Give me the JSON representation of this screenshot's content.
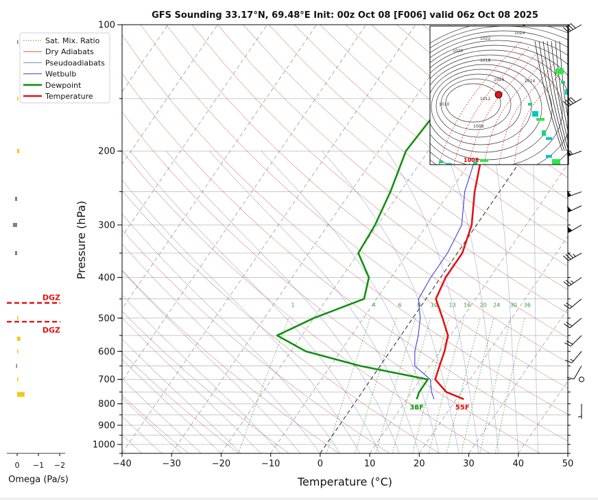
{
  "chart_data": {
    "type": "line",
    "title": "GFS Sounding 33.17°N, 69.48°E Init: 00z Oct 08 [F006] valid 06z Oct 08 2025",
    "xlabel": "Temperature (°C)",
    "ylabel": "Pressure (hPa)",
    "xlim": [
      -40,
      50
    ],
    "ylim_hpa": [
      1050,
      100
    ],
    "y_scale": "log",
    "skew": true,
    "x_ticks": [
      -40,
      -30,
      -20,
      -10,
      0,
      10,
      20,
      30,
      40,
      50
    ],
    "y_ticks": [
      100,
      200,
      300,
      400,
      500,
      600,
      700,
      800,
      900,
      1000
    ],
    "grid": true,
    "legend_position": "top-left",
    "legend": [
      {
        "label": "Sat. Mix. Ratio",
        "color": "#2ca02c",
        "style": "dotted"
      },
      {
        "label": "Dry Adiabats",
        "color": "#c85a5a",
        "style": "solid"
      },
      {
        "label": "Pseudoadiabats",
        "color": "#8080c0",
        "style": "solid"
      },
      {
        "label": "Wetbulb",
        "color": "#3b3bd8",
        "style": "solid"
      },
      {
        "label": "Dewpoint",
        "color": "#109010",
        "style": "solid"
      },
      {
        "label": "Temperature",
        "color": "#e01414",
        "style": "solid"
      }
    ],
    "series": [
      {
        "name": "Temperature",
        "color": "#e01414",
        "points": [
          [
            780,
            21.5
          ],
          [
            750,
            17
          ],
          [
            700,
            13
          ],
          [
            650,
            12
          ],
          [
            600,
            11
          ],
          [
            550,
            9.5
          ],
          [
            500,
            6
          ],
          [
            450,
            2
          ],
          [
            400,
            1
          ],
          [
            350,
            1
          ],
          [
            300,
            -1
          ],
          [
            250,
            -5
          ],
          [
            200,
            -9
          ],
          [
            150,
            -14
          ],
          [
            100,
            -6
          ]
        ]
      },
      {
        "name": "Dewpoint",
        "color": "#109010",
        "points": [
          [
            780,
            12
          ],
          [
            750,
            11.5
          ],
          [
            700,
            11.5
          ],
          [
            650,
            -4
          ],
          [
            600,
            -17
          ],
          [
            550,
            -25
          ],
          [
            500,
            -20
          ],
          [
            450,
            -12.5
          ],
          [
            400,
            -14.5
          ],
          [
            350,
            -20
          ],
          [
            300,
            -20.5
          ],
          [
            250,
            -22
          ],
          [
            200,
            -24.5
          ],
          [
            150,
            -23.5
          ],
          [
            100,
            -18
          ]
        ]
      },
      {
        "name": "Wetbulb",
        "color": "#3b3bd8",
        "points": [
          [
            780,
            15.5
          ],
          [
            750,
            14
          ],
          [
            700,
            12
          ],
          [
            650,
            7
          ],
          [
            600,
            5
          ],
          [
            550,
            3.5
          ],
          [
            500,
            1.5
          ],
          [
            450,
            -1.5
          ],
          [
            400,
            -2
          ],
          [
            350,
            -2
          ],
          [
            300,
            -3
          ],
          [
            250,
            -7
          ],
          [
            200,
            -10
          ],
          [
            150,
            -14
          ]
        ]
      }
    ],
    "mixing_ratio_labels": [
      "1",
      "4",
      "6",
      "8",
      "10",
      "13",
      "16",
      "20",
      "24",
      "30",
      "36"
    ],
    "surface_labels": {
      "dewpoint": "38F",
      "temperature": "55F"
    },
    "omega": {
      "xlabel": "Omega (Pa/s)",
      "x_ticks": [
        "0",
        "−1",
        "−2"
      ],
      "dgz_label": "DGZ",
      "dgz_bounds_hpa": [
        460,
        510
      ],
      "levels": [
        {
          "p": 110,
          "w": -0.03,
          "color": "#808080"
        },
        {
          "p": 150,
          "w": -0.03,
          "color": "#f5c518"
        },
        {
          "p": 200,
          "w": -0.1,
          "color": "#f5c518"
        },
        {
          "p": 260,
          "w": 0.1,
          "color": "#808080"
        },
        {
          "p": 300,
          "w": 0.2,
          "color": "#808080"
        },
        {
          "p": 350,
          "w": 0.1,
          "color": "#808080"
        },
        {
          "p": 500,
          "w": -0.05,
          "color": "#f5c518"
        },
        {
          "p": 560,
          "w": -0.15,
          "color": "#f5c518"
        },
        {
          "p": 600,
          "w": -0.05,
          "color": "#f5c518"
        },
        {
          "p": 650,
          "w": 0.05,
          "color": "#808080"
        },
        {
          "p": 700,
          "w": -0.05,
          "color": "#f5c518"
        },
        {
          "p": 760,
          "w": -0.35,
          "color": "#f5c518"
        }
      ]
    },
    "winds": [
      {
        "p": 100,
        "dir": 240,
        "kt": 40
      },
      {
        "p": 150,
        "dir": 240,
        "kt": 40
      },
      {
        "p": 200,
        "dir": 250,
        "kt": 55
      },
      {
        "p": 250,
        "dir": 250,
        "kt": 50
      },
      {
        "p": 270,
        "dir": 245,
        "kt": 50
      },
      {
        "p": 300,
        "dir": 240,
        "kt": 50
      },
      {
        "p": 350,
        "dir": 240,
        "kt": 35
      },
      {
        "p": 400,
        "dir": 235,
        "kt": 25
      },
      {
        "p": 450,
        "dir": 230,
        "kt": 20
      },
      {
        "p": 500,
        "dir": 230,
        "kt": 20
      },
      {
        "p": 550,
        "dir": 225,
        "kt": 20
      },
      {
        "p": 600,
        "dir": 220,
        "kt": 15
      },
      {
        "p": 650,
        "dir": 210,
        "kt": 10
      },
      {
        "p": 700,
        "dir": 0,
        "kt": 0
      },
      {
        "p": 800,
        "dir": 180,
        "kt": 5
      }
    ],
    "inset_map": {
      "isobar_labels": [
        "1024",
        "1022",
        "1020",
        "1018",
        "1016",
        "1014",
        "1012",
        "1010",
        "1008"
      ],
      "station_marker_color": "#e01414"
    }
  }
}
